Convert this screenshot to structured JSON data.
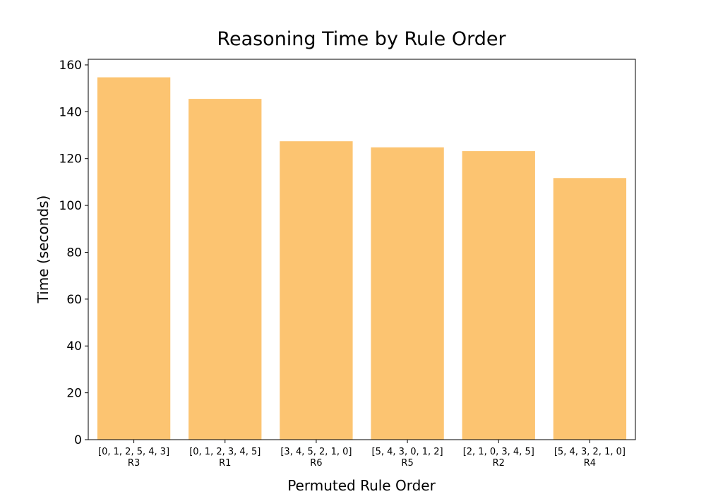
{
  "chart_data": {
    "type": "bar",
    "title": "Reasoning Time by Rule Order",
    "xlabel": "Permuted Rule Order",
    "ylabel": "Time (seconds)",
    "categories": [
      {
        "order": "[0, 1, 2, 5, 4, 3]",
        "rule": "R3"
      },
      {
        "order": "[0, 1, 2, 3, 4, 5]",
        "rule": "R1"
      },
      {
        "order": "[3, 4, 5, 2, 1, 0]",
        "rule": "R6"
      },
      {
        "order": "[5, 4, 3, 0, 1, 2]",
        "rule": "R5"
      },
      {
        "order": "[2, 1, 0, 3, 4, 5]",
        "rule": "R2"
      },
      {
        "order": "[5, 4, 3, 2, 1, 0]",
        "rule": "R4"
      }
    ],
    "values": [
      154.7,
      145.5,
      127.4,
      124.8,
      123.2,
      111.7
    ],
    "ylim": [
      0,
      162.4
    ],
    "yticks": [
      0,
      20,
      40,
      60,
      80,
      100,
      120,
      140,
      160
    ],
    "bar_color": "#fcc471",
    "grid": false,
    "legend": "none"
  }
}
